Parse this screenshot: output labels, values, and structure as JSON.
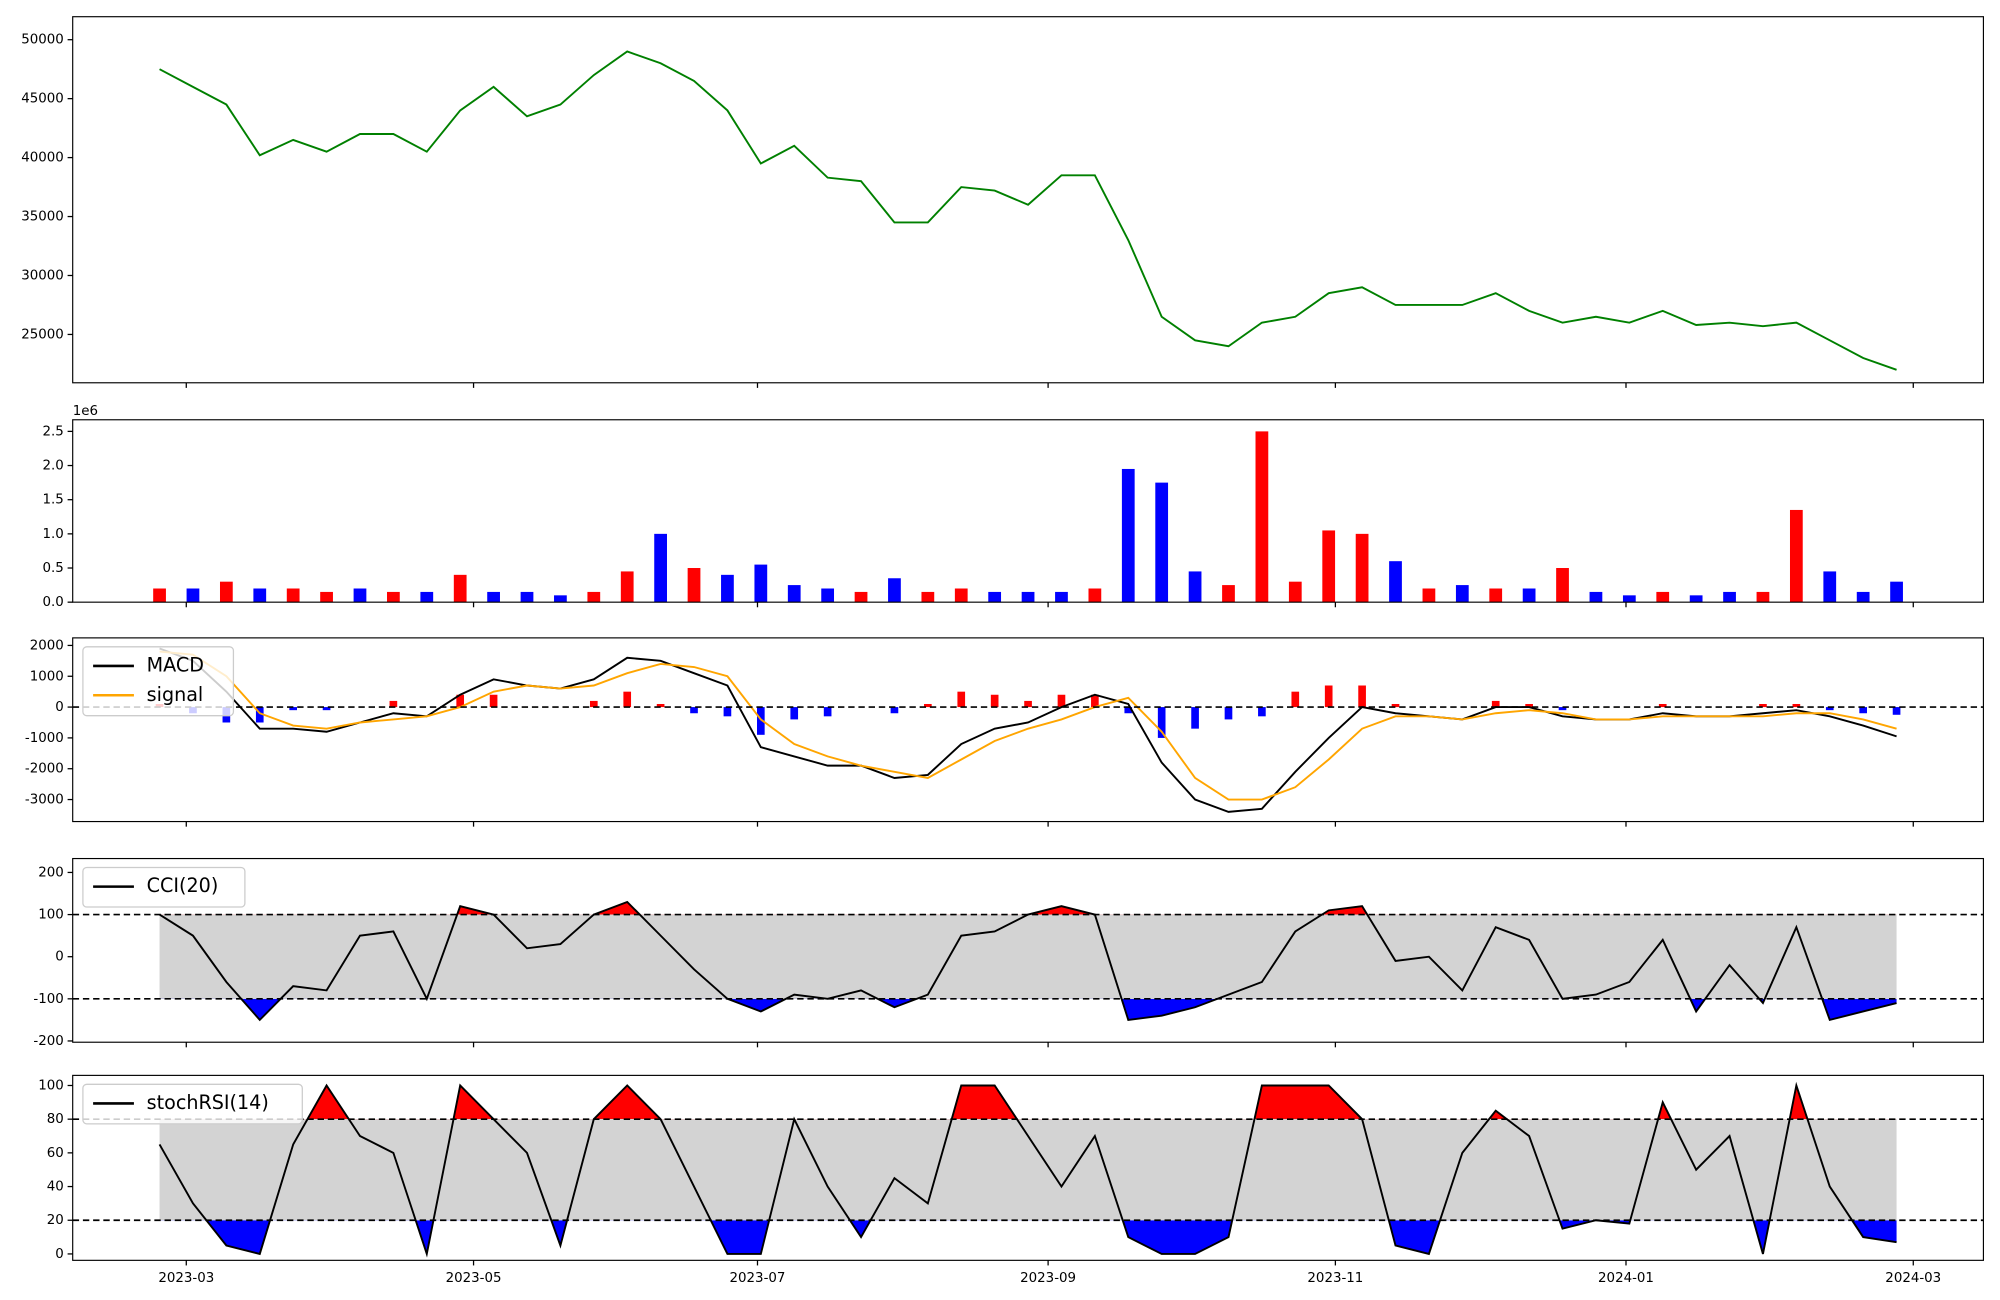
{
  "chart_data": [
    {
      "type": "line",
      "series": [
        {
          "color": "#008000",
          "values": [
            47500,
            46000,
            44500,
            40200,
            41500,
            40500,
            42000,
            42000,
            40500,
            44000,
            46000,
            43500,
            44500,
            47000,
            49000,
            48000,
            46500,
            44000,
            39500,
            41000,
            38300,
            38000,
            34500,
            34500,
            37500,
            37200,
            36000,
            38500,
            38500,
            33000,
            26500,
            24500,
            24000,
            26000,
            26500,
            28500,
            29000,
            27500,
            27500,
            27500,
            28500,
            27000,
            26000,
            26500,
            26000,
            27000,
            25800,
            26000,
            25700,
            26000,
            24500,
            23000,
            22000
          ]
        }
      ],
      "ylim": [
        20900,
        51950
      ],
      "yticks": [
        25000,
        30000,
        35000,
        40000,
        45000,
        50000
      ]
    },
    {
      "type": "bar",
      "values": [
        0.2,
        0.2,
        0.3,
        0.2,
        0.2,
        0.15,
        0.2,
        0.15,
        0.15,
        0.4,
        0.15,
        0.15,
        0.1,
        0.15,
        0.45,
        1.0,
        0.5,
        0.4,
        0.55,
        0.25,
        0.2,
        0.15,
        0.35,
        0.15,
        0.2,
        0.15,
        0.15,
        0.15,
        0.2,
        1.95,
        1.75,
        0.45,
        0.25,
        2.5,
        0.3,
        1.05,
        1.0,
        0.6,
        0.2,
        0.25,
        0.2,
        0.2,
        0.5,
        0.15,
        0.1,
        0.15,
        0.1,
        0.15,
        0.15,
        1.35,
        0.45,
        0.15,
        0.3
      ],
      "colors": [
        "#ff0000",
        "#0000ff",
        "#ff0000",
        "#0000ff",
        "#ff0000",
        "#ff0000",
        "#0000ff",
        "#ff0000",
        "#0000ff",
        "#ff0000",
        "#0000ff",
        "#0000ff",
        "#0000ff",
        "#ff0000",
        "#ff0000",
        "#0000ff",
        "#ff0000",
        "#0000ff",
        "#0000ff",
        "#0000ff",
        "#0000ff",
        "#ff0000",
        "#0000ff",
        "#ff0000",
        "#ff0000",
        "#0000ff",
        "#0000ff",
        "#0000ff",
        "#ff0000",
        "#0000ff",
        "#0000ff",
        "#0000ff",
        "#ff0000",
        "#ff0000",
        "#ff0000",
        "#ff0000",
        "#ff0000",
        "#0000ff",
        "#ff0000",
        "#0000ff",
        "#ff0000",
        "#0000ff",
        "#ff0000",
        "#0000ff",
        "#0000ff",
        "#ff0000",
        "#0000ff",
        "#0000ff",
        "#ff0000",
        "#ff0000",
        "#0000ff",
        "#0000ff",
        "#0000ff"
      ],
      "ylim": [
        0,
        2.67
      ],
      "yticks": [
        {
          "value": 0,
          "label": "0.0"
        },
        {
          "value": 0.5,
          "label": "0.5"
        },
        {
          "value": 1,
          "label": "1.0"
        },
        {
          "value": 1.5,
          "label": "1.5"
        },
        {
          "value": 2,
          "label": "2.0"
        },
        {
          "value": 2.5,
          "label": "2.5"
        }
      ],
      "offset_label": "1e6"
    },
    {
      "type": "line",
      "series": [
        {
          "name": "MACD",
          "color": "#000000",
          "values": [
            1900,
            1500,
            500,
            -700,
            -700,
            -800,
            -500,
            -200,
            -300,
            400,
            900,
            700,
            600,
            900,
            1600,
            1500,
            1100,
            700,
            -1300,
            -1600,
            -1900,
            -1900,
            -2300,
            -2200,
            -1200,
            -700,
            -500,
            0,
            400,
            100,
            -1800,
            -3000,
            -3400,
            -3300,
            -2100,
            -1000,
            0,
            -200,
            -300,
            -400,
            0,
            0,
            -300,
            -400,
            -400,
            -200,
            -300,
            -300,
            -200,
            -100,
            -300,
            -600,
            -950
          ]
        },
        {
          "name": "signal",
          "color": "#ffa500",
          "values": [
            1800,
            1700,
            1000,
            -200,
            -600,
            -700,
            -500,
            -400,
            -300,
            0,
            500,
            700,
            600,
            700,
            1100,
            1400,
            1300,
            1000,
            -400,
            -1200,
            -1600,
            -1900,
            -2100,
            -2300,
            -1700,
            -1100,
            -700,
            -400,
            0,
            300,
            -800,
            -2300,
            -3000,
            -3000,
            -2600,
            -1700,
            -700,
            -300,
            -300,
            -400,
            -200,
            -100,
            -200,
            -400,
            -400,
            -300,
            -300,
            -300,
            -300,
            -200,
            -200,
            -400,
            -700
          ]
        }
      ],
      "histogram": {
        "values": [
          100,
          -200,
          -500,
          -500,
          -100,
          -100,
          0,
          200,
          0,
          400,
          400,
          0,
          0,
          200,
          500,
          100,
          -200,
          -300,
          -900,
          -400,
          -300,
          0,
          -200,
          100,
          500,
          400,
          200,
          400,
          400,
          -200,
          -1000,
          -700,
          -400,
          -300,
          500,
          700,
          700,
          100,
          0,
          0,
          200,
          100,
          -100,
          0,
          0,
          100,
          0,
          0,
          100,
          100,
          -100,
          -200,
          -250
        ],
        "positive_color": "#ff0000",
        "negative_color": "#0000ff"
      },
      "hlines": [
        0
      ],
      "ylim": [
        -3714,
        2245
      ],
      "yticks": [
        -3000,
        -2000,
        -1000,
        0,
        1000,
        2000
      ],
      "legend": "upper left"
    },
    {
      "type": "line",
      "series": [
        {
          "name": "CCI(20)",
          "color": "#000000",
          "values": [
            100,
            50,
            -60,
            -150,
            -70,
            -80,
            50,
            60,
            -100,
            120,
            100,
            20,
            30,
            100,
            130,
            50,
            -30,
            -100,
            -130,
            -90,
            -100,
            -80,
            -120,
            -90,
            50,
            60,
            100,
            120,
            100,
            -150,
            -140,
            -120,
            -90,
            -60,
            60,
            110,
            120,
            -10,
            0,
            -80,
            70,
            40,
            -100,
            -90,
            -60,
            40,
            -130,
            -20,
            -110,
            70,
            -150,
            -130,
            -110
          ]
        }
      ],
      "hlines": [
        100,
        -100
      ],
      "band_color": "#d3d3d3",
      "above_color": "#ff0000",
      "below_color": "#0000ff",
      "ylim": [
        -203,
        233
      ],
      "yticks": [
        -200,
        -100,
        0,
        100,
        200
      ],
      "legend": "upper left"
    },
    {
      "type": "line",
      "series": [
        {
          "name": "stochRSI(14)",
          "color": "#000000",
          "values": [
            65,
            30,
            5,
            0,
            65,
            100,
            70,
            60,
            0,
            100,
            80,
            60,
            5,
            80,
            100,
            80,
            40,
            0,
            0,
            80,
            40,
            10,
            45,
            30,
            100,
            100,
            70,
            40,
            70,
            10,
            0,
            0,
            10,
            100,
            100,
            100,
            80,
            5,
            0,
            60,
            85,
            70,
            15,
            20,
            18,
            90,
            50,
            70,
            0,
            100,
            40,
            10,
            7
          ]
        }
      ],
      "hlines": [
        80,
        20
      ],
      "band_color": "#d3d3d3",
      "above_color": "#ff0000",
      "below_color": "#0000ff",
      "ylim": [
        -3.8,
        106
      ],
      "yticks": [
        0,
        20,
        40,
        60,
        80,
        100
      ],
      "legend": "upper left",
      "xlim": [
        -2.6,
        54.6
      ],
      "xticks": [
        {
          "value": 0.8,
          "label": "2023-03"
        },
        {
          "value": 9.4,
          "label": "2023-05"
        },
        {
          "value": 17.9,
          "label": "2023-07"
        },
        {
          "value": 26.6,
          "label": "2023-09"
        },
        {
          "value": 35.2,
          "label": "2023-11"
        },
        {
          "value": 43.9,
          "label": "2024-01"
        },
        {
          "value": 52.5,
          "label": "2024-03"
        }
      ]
    }
  ]
}
